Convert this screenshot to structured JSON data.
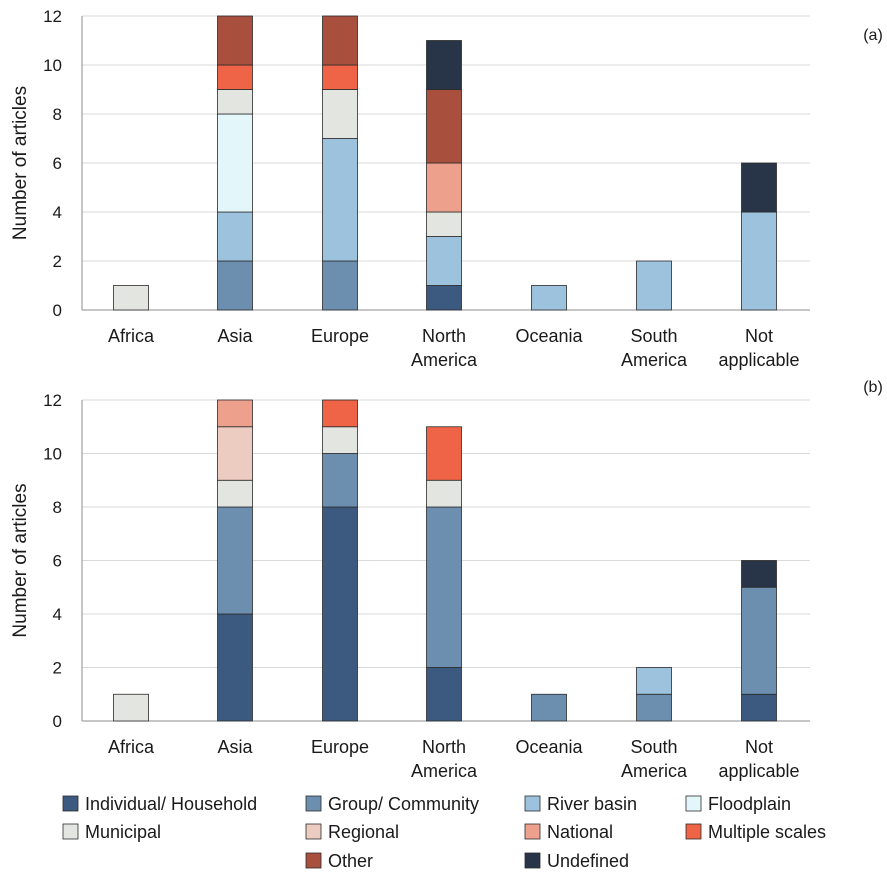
{
  "legend": [
    {
      "key": "individual",
      "label": "Individual/ Household",
      "color": "#3c5a80"
    },
    {
      "key": "group",
      "label": "Group/ Community",
      "color": "#6c8fb0"
    },
    {
      "key": "river",
      "label": "River basin",
      "color": "#9cc2dd"
    },
    {
      "key": "floodplain",
      "label": "Floodplain",
      "color": "#e3f7fb"
    },
    {
      "key": "municipal",
      "label": "Municipal",
      "color": "#e3e5e0"
    },
    {
      "key": "regional",
      "label": "Regional",
      "color": "#eccbc0"
    },
    {
      "key": "national",
      "label": "National",
      "color": "#eda08c"
    },
    {
      "key": "multiple",
      "label": "Multiple scales",
      "color": "#ef6447"
    },
    {
      "key": "other",
      "label": "Other",
      "color": "#a84f3d"
    },
    {
      "key": "undefined",
      "label": "Undefined",
      "color": "#283548"
    }
  ],
  "chart_data": [
    {
      "type": "bar",
      "stacked": true,
      "panel_label": "(a)",
      "ylabel": "Number of articles",
      "ylim": [
        0,
        12
      ],
      "yticks": [
        0,
        2,
        4,
        6,
        8,
        10,
        12
      ],
      "categories": [
        [
          "Africa"
        ],
        [
          "Asia"
        ],
        [
          "Europe"
        ],
        [
          "North",
          "America"
        ],
        [
          "Oceania"
        ],
        [
          "South",
          "America"
        ],
        [
          "Not",
          "applicable"
        ]
      ],
      "series": [
        {
          "key": "individual",
          "values": [
            0,
            0,
            0,
            1,
            0,
            0,
            0
          ]
        },
        {
          "key": "group",
          "values": [
            0,
            2,
            2,
            0,
            0,
            0,
            0
          ]
        },
        {
          "key": "river",
          "values": [
            0,
            2,
            5,
            2,
            1,
            2,
            4
          ]
        },
        {
          "key": "floodplain",
          "values": [
            0,
            4,
            0,
            0,
            0,
            0,
            0
          ]
        },
        {
          "key": "municipal",
          "values": [
            1,
            1,
            2,
            1,
            0,
            0,
            0
          ]
        },
        {
          "key": "regional",
          "values": [
            0,
            0,
            0,
            0,
            0,
            0,
            0
          ]
        },
        {
          "key": "national",
          "values": [
            0,
            0,
            0,
            2,
            0,
            0,
            0
          ]
        },
        {
          "key": "multiple",
          "values": [
            0,
            1,
            1,
            0,
            0,
            0,
            0
          ]
        },
        {
          "key": "other",
          "values": [
            0,
            2,
            2,
            3,
            0,
            0,
            0
          ]
        },
        {
          "key": "undefined",
          "values": [
            0,
            0,
            0,
            2,
            0,
            0,
            2
          ]
        }
      ]
    },
    {
      "type": "bar",
      "stacked": true,
      "panel_label": "(b)",
      "ylabel": "Number of articles",
      "ylim": [
        0,
        12
      ],
      "yticks": [
        0,
        2,
        4,
        6,
        8,
        10,
        12
      ],
      "categories": [
        [
          "Africa"
        ],
        [
          "Asia"
        ],
        [
          "Europe"
        ],
        [
          "North",
          "America"
        ],
        [
          "Oceania"
        ],
        [
          "South",
          "America"
        ],
        [
          "Not",
          "applicable"
        ]
      ],
      "series": [
        {
          "key": "individual",
          "values": [
            0,
            4,
            8,
            2,
            0,
            0,
            1
          ]
        },
        {
          "key": "group",
          "values": [
            0,
            4,
            2,
            6,
            1,
            1,
            4
          ]
        },
        {
          "key": "river",
          "values": [
            0,
            0,
            0,
            0,
            0,
            1,
            0
          ]
        },
        {
          "key": "floodplain",
          "values": [
            0,
            0,
            0,
            0,
            0,
            0,
            0
          ]
        },
        {
          "key": "municipal",
          "values": [
            1,
            1,
            1,
            1,
            0,
            0,
            0
          ]
        },
        {
          "key": "regional",
          "values": [
            0,
            2,
            0,
            0,
            0,
            0,
            0
          ]
        },
        {
          "key": "national",
          "values": [
            0,
            1,
            0,
            0,
            0,
            0,
            0
          ]
        },
        {
          "key": "multiple",
          "values": [
            0,
            0,
            1,
            2,
            0,
            0,
            0
          ]
        },
        {
          "key": "other",
          "values": [
            0,
            0,
            0,
            0,
            0,
            0,
            0
          ]
        },
        {
          "key": "undefined",
          "values": [
            0,
            0,
            0,
            0,
            0,
            0,
            1
          ]
        }
      ]
    }
  ]
}
